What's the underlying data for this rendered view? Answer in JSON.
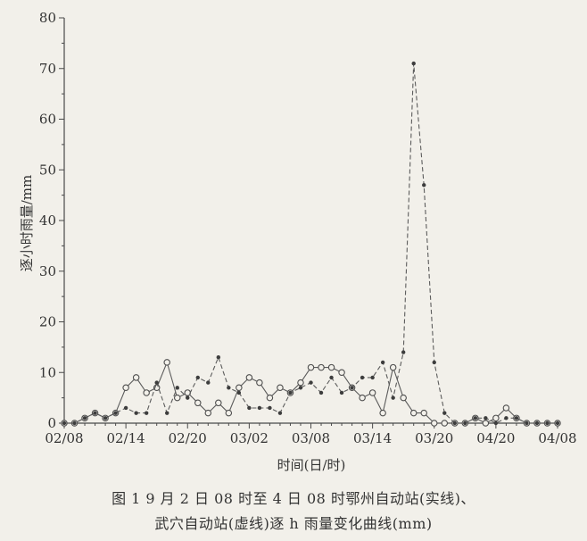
{
  "chart_data": {
    "type": "line",
    "xlabel": "时间(日/时)",
    "ylabel": "逐小时雨量/mm",
    "ylim": [
      0,
      80
    ],
    "yticks": [
      0,
      10,
      20,
      30,
      40,
      50,
      60,
      70,
      80
    ],
    "x_tick_labels": [
      "02/08",
      "02/14",
      "02/20",
      "03/02",
      "03/08",
      "03/14",
      "03/20",
      "04/20",
      "04/08"
    ],
    "x_tick_index": [
      0,
      6,
      12,
      18,
      24,
      30,
      36,
      42,
      48
    ],
    "x_range": [
      0,
      48
    ],
    "grid": false,
    "series": [
      {
        "style": "solid",
        "marker": "circle",
        "x": [
          0,
          1,
          2,
          3,
          4,
          5,
          6,
          7,
          8,
          9,
          10,
          11,
          12,
          13,
          14,
          15,
          16,
          17,
          18,
          19,
          20,
          21,
          22,
          23,
          24,
          25,
          26,
          27,
          28,
          29,
          30,
          31,
          32,
          33,
          34,
          35,
          36,
          37,
          38,
          39,
          40,
          41,
          42,
          43,
          44,
          45,
          46,
          47,
          48
        ],
        "values": [
          0,
          0,
          1,
          2,
          1,
          2,
          7,
          9,
          6,
          7,
          12,
          5,
          6,
          4,
          2,
          4,
          2,
          7,
          9,
          8,
          5,
          7,
          6,
          8,
          11,
          11,
          11,
          10,
          7,
          5,
          6,
          2,
          11,
          5,
          2,
          2,
          0,
          0,
          0,
          0,
          1,
          0,
          1,
          3,
          1,
          0,
          0,
          0,
          0
        ]
      },
      {
        "style": "dashed",
        "marker": "dot",
        "x": [
          0,
          1,
          2,
          3,
          4,
          5,
          6,
          7,
          8,
          9,
          10,
          11,
          12,
          13,
          14,
          15,
          16,
          17,
          18,
          19,
          20,
          21,
          22,
          23,
          24,
          25,
          26,
          27,
          28,
          29,
          30,
          31,
          32,
          33,
          34,
          35,
          36,
          37,
          38,
          39,
          40,
          41,
          42,
          43,
          44,
          45,
          46,
          47,
          48
        ],
        "values": [
          0,
          0,
          1,
          2,
          1,
          2,
          3,
          2,
          2,
          8,
          2,
          7,
          5,
          9,
          8,
          13,
          7,
          6,
          3,
          3,
          3,
          2,
          6,
          7,
          8,
          6,
          9,
          6,
          7,
          9,
          9,
          12,
          5,
          14,
          71,
          47,
          12,
          2,
          0,
          0,
          1,
          1,
          0,
          1,
          1,
          0,
          0,
          0,
          0
        ]
      }
    ],
    "caption_lines": [
      "图 1 9 月 2 日 08 时至 4 日 08 时鄂州自动站(实线)、",
      "武穴自动站(虚线)逐 h 雨量变化曲线(mm)"
    ]
  }
}
